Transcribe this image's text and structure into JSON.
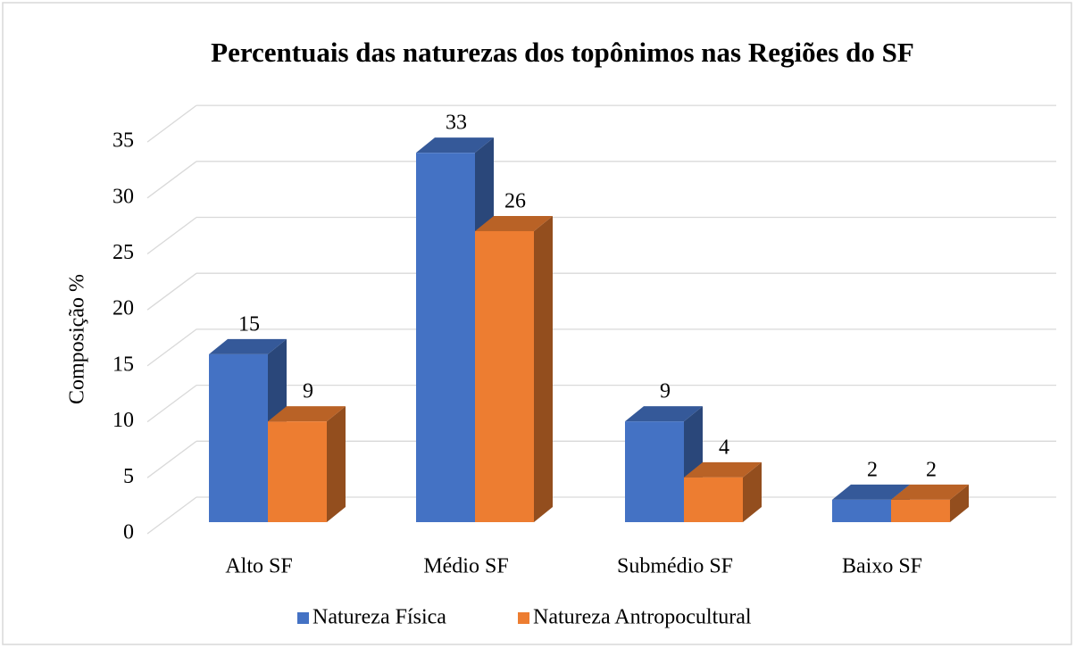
{
  "chart_data": {
    "type": "bar3d",
    "title": "Percentuais das naturezas dos topônimos nas Regiões do SF",
    "y_label": "Composição %",
    "categories": [
      "Alto SF",
      "Médio SF",
      "Submédio SF",
      "Baixo SF"
    ],
    "series": [
      {
        "name": "Natureza Física",
        "color": "#4472c4",
        "values": [
          15,
          33,
          9,
          2
        ]
      },
      {
        "name": "Natureza Antropocultural",
        "color": "#ed7d31",
        "values": [
          9,
          26,
          4,
          2
        ]
      }
    ],
    "ylim": [
      0,
      35
    ],
    "yticks": [
      0,
      5,
      10,
      15,
      20,
      25,
      30,
      35
    ],
    "grid": true,
    "legend": "bottom"
  }
}
